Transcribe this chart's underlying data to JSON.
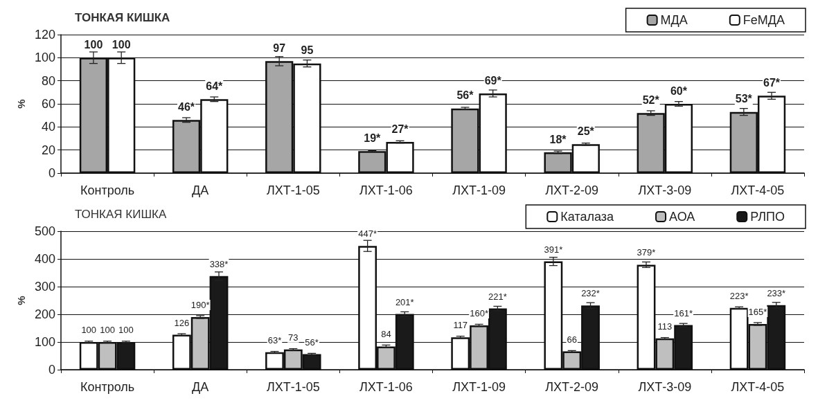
{
  "chart_data": [
    {
      "type": "bar",
      "title": "ТОНКАЯ КИШКА",
      "ylabel": "%",
      "categories": [
        "Контроль",
        "ДА",
        "ЛХТ-1-05",
        "ЛХТ-1-06",
        "ЛХТ-1-09",
        "ЛХТ-2-09",
        "ЛХТ-3-09",
        "ЛХТ-4-05"
      ],
      "series": [
        {
          "name": "МДА",
          "color": "#a6a6a6",
          "values": [
            100,
            46,
            97,
            19,
            56,
            18,
            52,
            53
          ],
          "errors": [
            5,
            2,
            4,
            0.5,
            1,
            1,
            2,
            3
          ],
          "value_labels": [
            "100",
            "46*",
            "97",
            "19*",
            "56*",
            "18*",
            "52*",
            "53*"
          ]
        },
        {
          "name": "FeМДА",
          "color": "#ffffff",
          "values": [
            100,
            64,
            95,
            27,
            69,
            25,
            60,
            67
          ],
          "errors": [
            5,
            2,
            3,
            1,
            3,
            1,
            2,
            3
          ],
          "value_labels": [
            "100",
            "64*",
            "95",
            "27*",
            "69*",
            "25*",
            "60*",
            "67*"
          ]
        }
      ],
      "ylim": [
        0,
        120
      ],
      "yticks": [
        0,
        20,
        40,
        60,
        80,
        100,
        120
      ],
      "grid": "y",
      "legend": "top right"
    },
    {
      "type": "bar",
      "title": "ТОНКАЯ КИШКА",
      "ylabel": "%",
      "categories": [
        "Контроль",
        "ДА",
        "ЛХТ-1-05",
        "ЛХТ-1-06",
        "ЛХТ-1-09",
        "ЛХТ-2-09",
        "ЛХТ-3-09",
        "ЛХТ-4-05"
      ],
      "series": [
        {
          "name": "Каталаза",
          "color": "#ffffff",
          "values": [
            100,
            126,
            63,
            447,
            117,
            391,
            379,
            223
          ],
          "errors": [
            3,
            4,
            3,
            20,
            4,
            15,
            10,
            4
          ],
          "value_labels": [
            "100",
            "126",
            "63*",
            "447*",
            "117",
            "391*",
            "379*",
            "223*"
          ]
        },
        {
          "name": "АОА",
          "color": "#bfbfbf",
          "values": [
            100,
            190,
            73,
            84,
            160,
            66,
            113,
            165
          ],
          "errors": [
            3,
            5,
            3,
            5,
            4,
            3,
            3,
            5
          ],
          "value_labels": [
            "100",
            "190*",
            "73",
            "84",
            "160*",
            "66",
            "113",
            "165*"
          ]
        },
        {
          "name": "РЛПО",
          "color": "#1a1a1a",
          "values": [
            100,
            338,
            56,
            201,
            221,
            232,
            161,
            233
          ],
          "errors": [
            3,
            15,
            3,
            8,
            8,
            10,
            6,
            10
          ],
          "value_labels": [
            "100",
            "338*",
            "56*",
            "201*",
            "221*",
            "232*",
            "161*",
            "233*"
          ]
        }
      ],
      "ylim": [
        0,
        500
      ],
      "yticks": [
        0,
        100,
        200,
        300,
        400,
        500
      ],
      "grid": "y",
      "legend": "top right"
    }
  ]
}
